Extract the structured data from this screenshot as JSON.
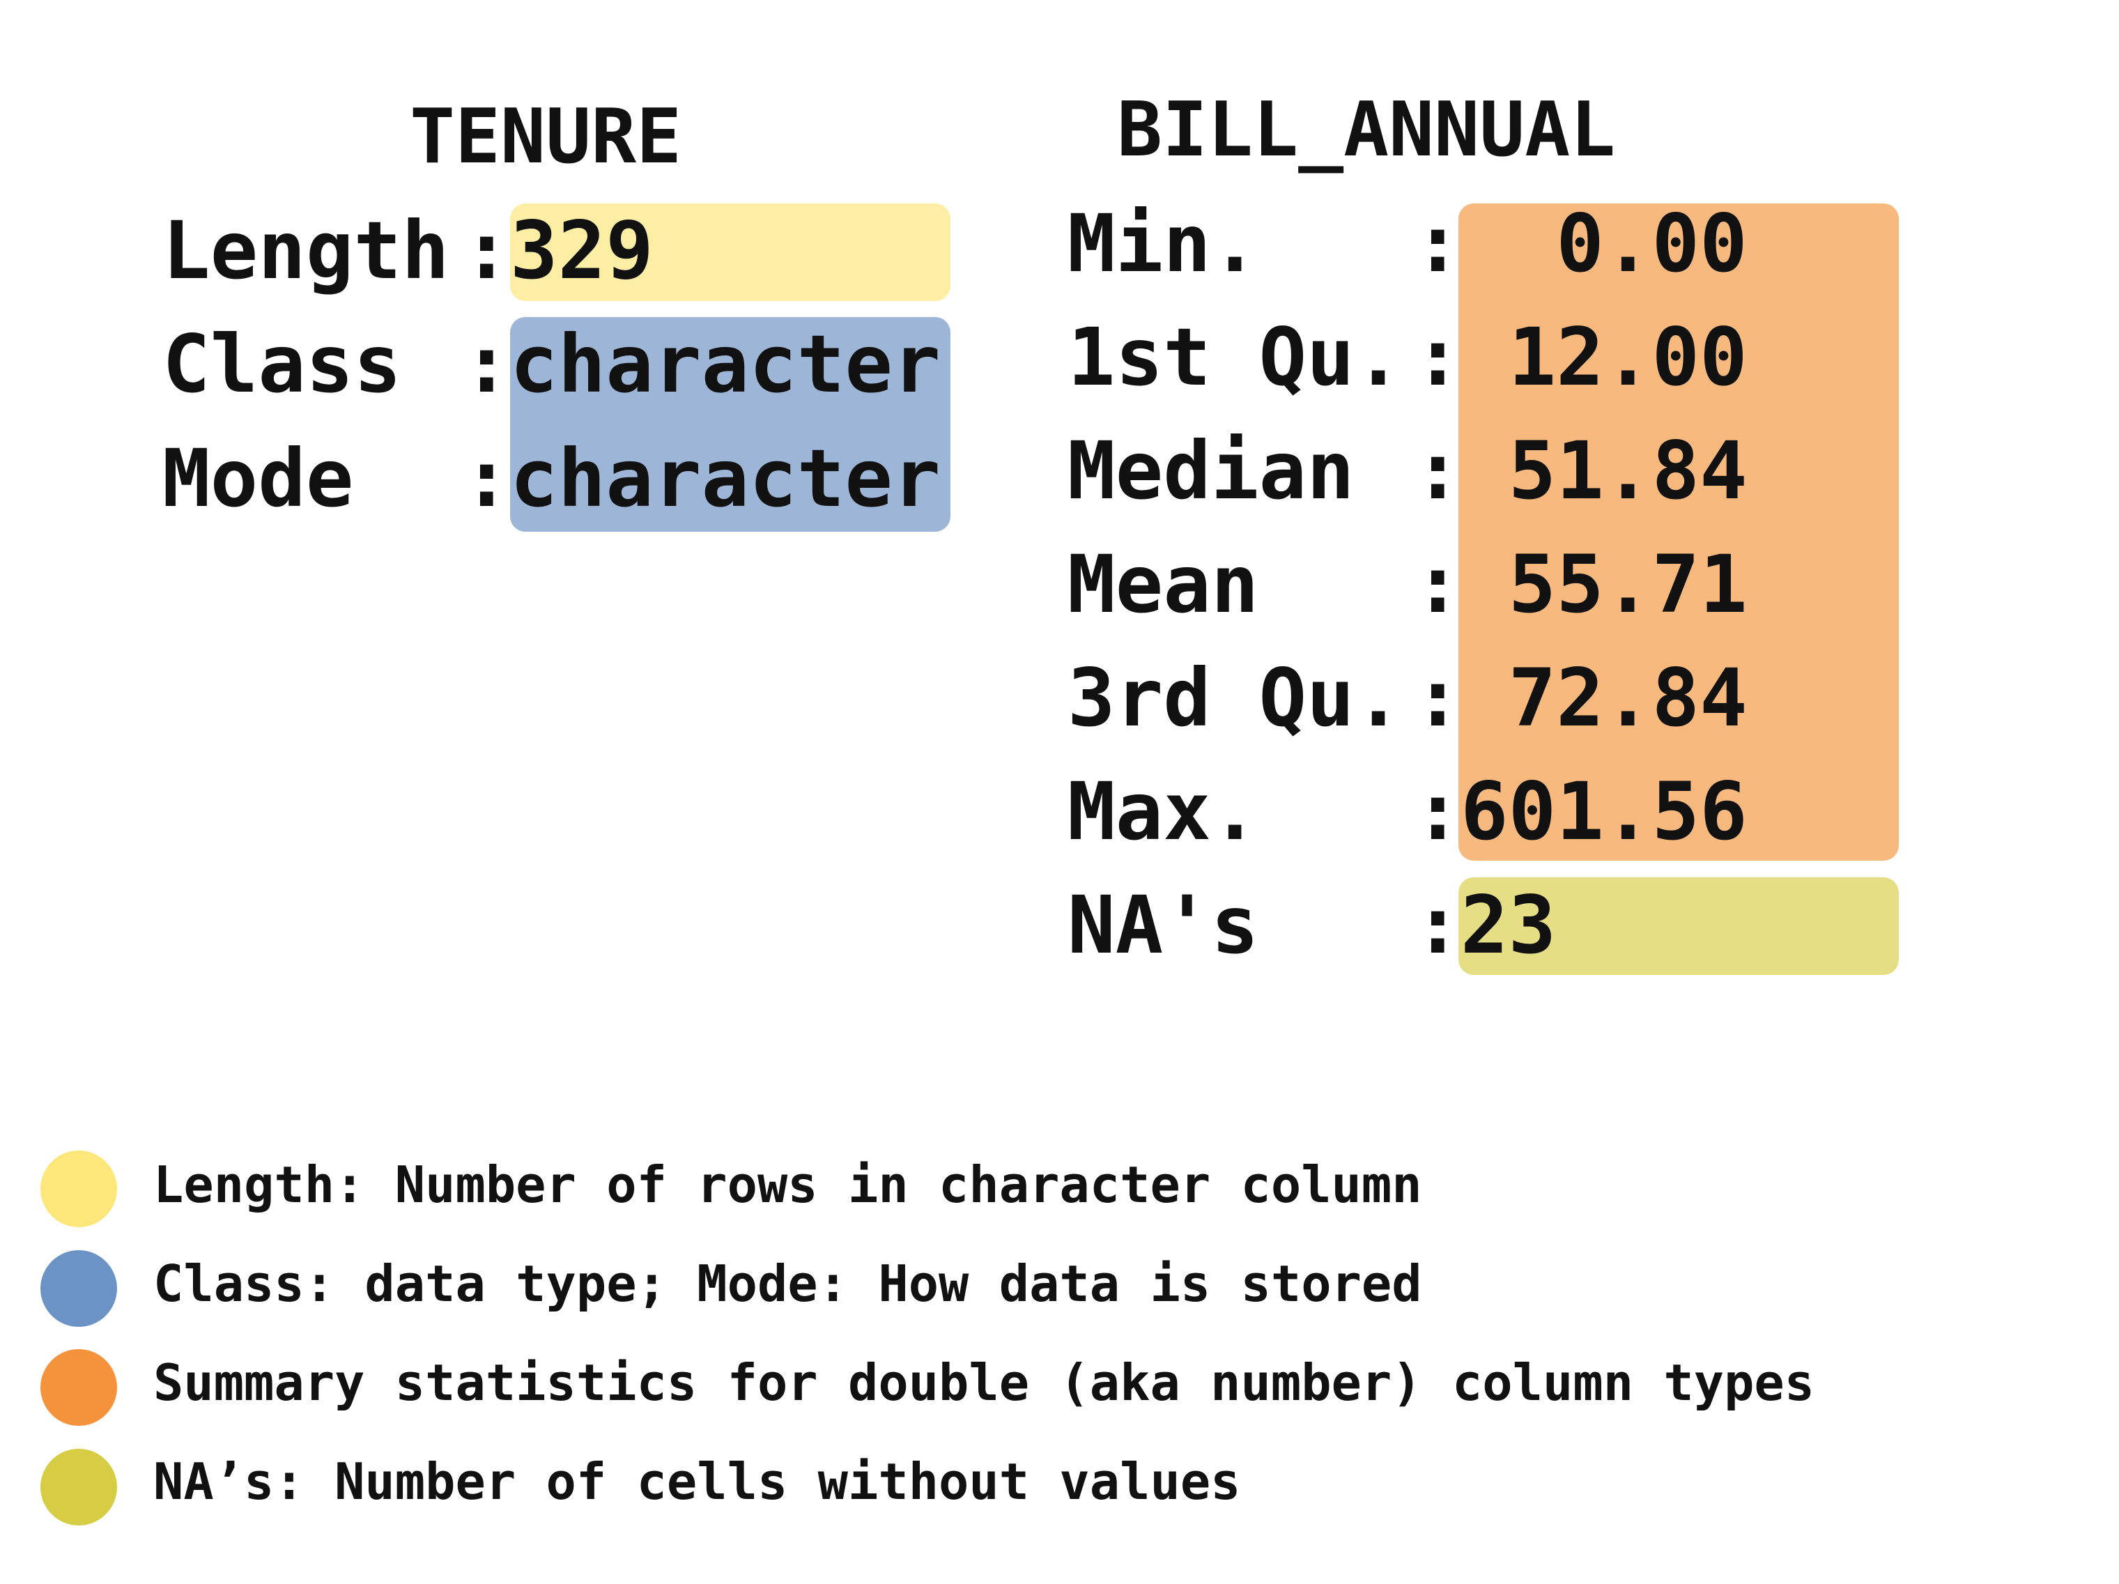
{
  "tenure": {
    "title": "TENURE",
    "rows": [
      {
        "label": "Length",
        "value": "329"
      },
      {
        "label": "Class ",
        "value": "character"
      },
      {
        "label": "Mode  ",
        "value": "character"
      }
    ]
  },
  "bill_annual": {
    "title": "BILL_ANNUAL",
    "rows": [
      {
        "label": "Min.   ",
        "value": "  0.00"
      },
      {
        "label": "1st Qu.",
        "value": " 12.00"
      },
      {
        "label": "Median ",
        "value": " 51.84"
      },
      {
        "label": "Mean   ",
        "value": " 55.71"
      },
      {
        "label": "3rd Qu.",
        "value": " 72.84"
      },
      {
        "label": "Max.   ",
        "value": "601.56"
      },
      {
        "label": "NA's   ",
        "value": "23"
      }
    ]
  },
  "colon": ":",
  "colors": {
    "length": "#fdeea6",
    "class_mode": "#9db6d8",
    "summary": "#f8b97e",
    "na": "#e6de84",
    "legend_yellow": "#fde77a",
    "legend_blue": "#6b93c5",
    "legend_orange": "#f4933b",
    "legend_olive": "#d6cd45"
  },
  "legend": [
    {
      "text": "Length: Number of rows in character column",
      "color": "#fde77a"
    },
    {
      "text": "Class: data type; Mode: How data is stored",
      "color": "#6b93c5"
    },
    {
      "text": "Summary statistics for double (aka number) column types",
      "color": "#f4933b"
    },
    {
      "text": "NA’s: Number of cells without values",
      "color": "#d6cd45"
    }
  ]
}
